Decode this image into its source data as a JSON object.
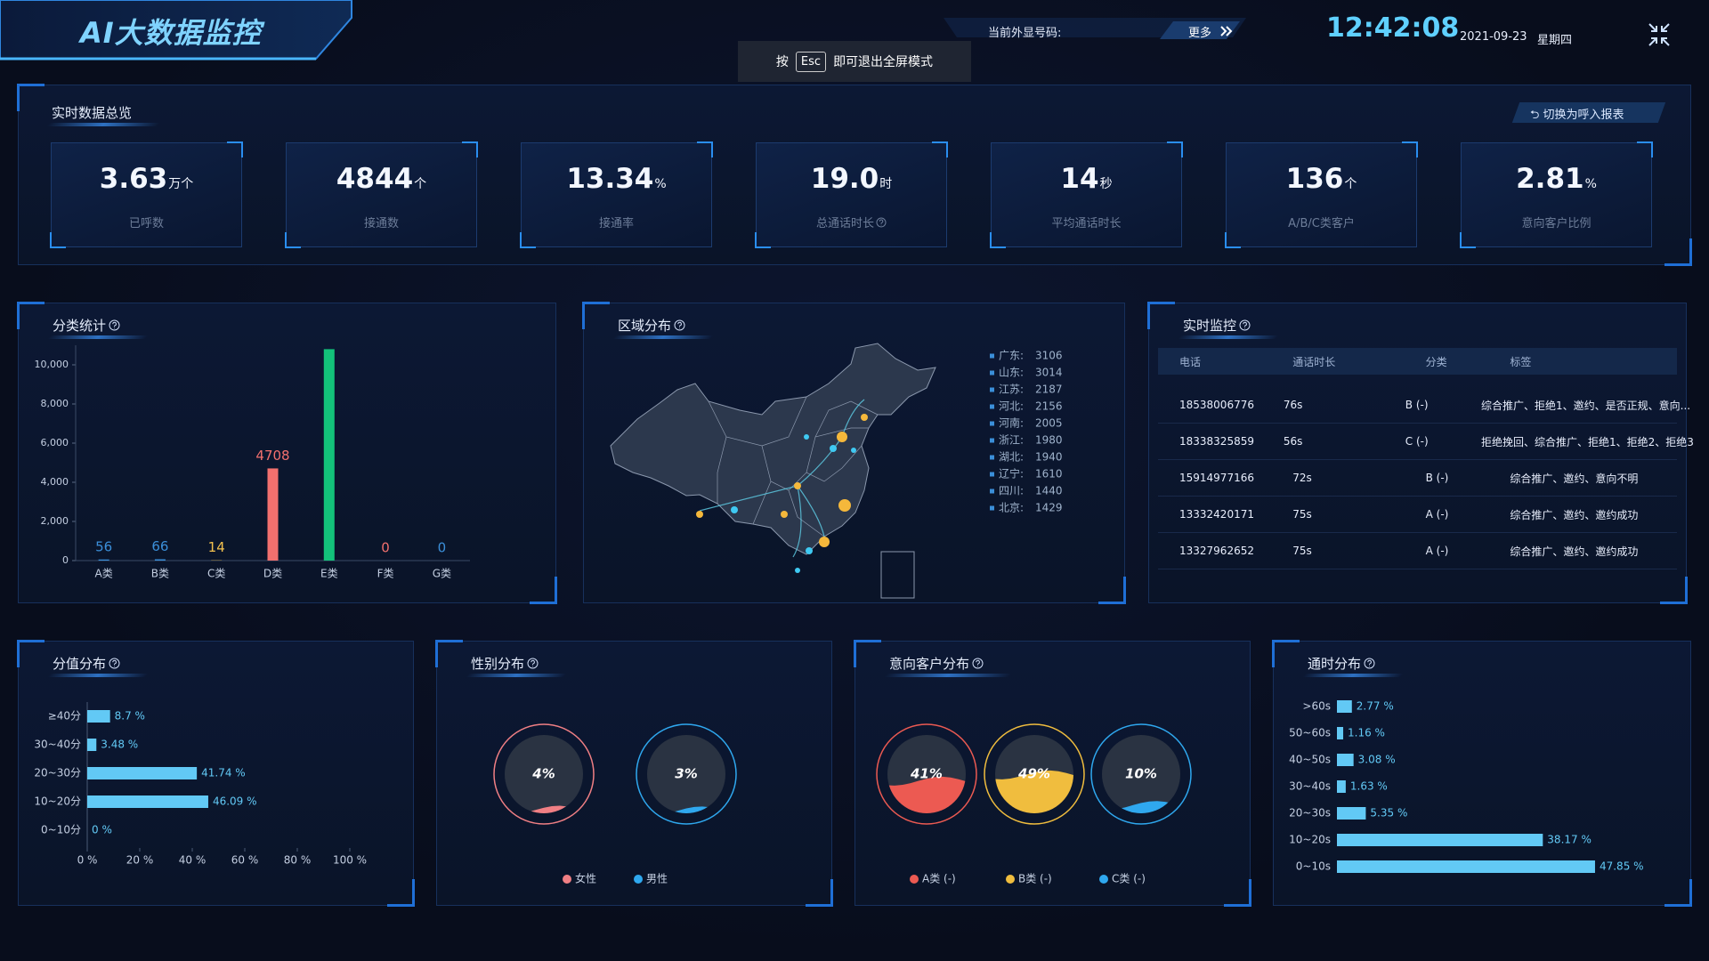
{
  "header": {
    "title": "AI大数据监控",
    "caller_label": "当前外显号码:",
    "more_button": "更多",
    "time": "12:42:08",
    "date": "2021-09-23",
    "weekday": "星期四"
  },
  "fullscreen_hint": {
    "before": "按",
    "key": "Esc",
    "after": "即可退出全屏模式"
  },
  "overview": {
    "title": "实时数据总览",
    "switch_button": "切换为呼入报表",
    "kpis": [
      {
        "value": "3.63",
        "unit": "万个",
        "label": "已呼数"
      },
      {
        "value": "4844",
        "unit": "个",
        "label": "接通数"
      },
      {
        "value": "13.34",
        "unit": "%",
        "label": "接通率"
      },
      {
        "value": "19.0",
        "unit": "时",
        "label": "总通话时长"
      },
      {
        "value": "14",
        "unit": "秒",
        "label": "平均通话时长"
      },
      {
        "value": "136",
        "unit": "个",
        "label": "A/B/C类客户"
      },
      {
        "value": "2.81",
        "unit": "%",
        "label": "意向客户比例"
      }
    ]
  },
  "chart_data": [
    {
      "type": "bar",
      "title": "分类统计",
      "categories": [
        "A类",
        "B类",
        "C类",
        "D类",
        "E类",
        "F类",
        "G类"
      ],
      "values": [
        56,
        66,
        14,
        4708,
        10800,
        0,
        0
      ],
      "value_labels": [
        "56",
        "66",
        "14",
        "4708",
        null,
        "0",
        "0"
      ],
      "colors": [
        "#3b8fd9",
        "#3b8fd9",
        "#f2c14e",
        "#f2706e",
        "#13c27a",
        "#f2706e",
        "#3b8fd9"
      ],
      "ylim": [
        0,
        11000
      ],
      "yticks": [
        0,
        {
          "value": 2000,
          "label": "2,000"
        },
        {
          "value": 4000,
          "label": "4,000"
        },
        {
          "value": 6000,
          "label": "6,000"
        },
        {
          "value": 8000,
          "label": "8,000"
        },
        {
          "value": 10000,
          "label": "10,000"
        }
      ]
    },
    {
      "type": "hbar",
      "title": "分值分布",
      "categories": [
        "≥40分",
        "30~40分",
        "20~30分",
        "10~20分",
        "0~10分"
      ],
      "values": [
        8.7,
        3.48,
        41.74,
        46.09,
        0
      ],
      "value_labels": [
        "8.7 %",
        "3.48 %",
        "41.74 %",
        "46.09 %",
        "0 %"
      ],
      "color": "#62c9f5",
      "xlim": [
        0,
        100
      ],
      "xticks": [
        {
          "value": 0,
          "label": "0 %"
        },
        {
          "value": 20,
          "label": "20 %"
        },
        {
          "value": 40,
          "label": "40 %"
        },
        {
          "value": 60,
          "label": "60 %"
        },
        {
          "value": 80,
          "label": "80 %"
        },
        {
          "value": 100,
          "label": "100 %"
        }
      ]
    },
    {
      "type": "gauge",
      "title": "性别分布",
      "categories": [
        "女性",
        "男性"
      ],
      "values": [
        4,
        3
      ],
      "value_labels": [
        "4%",
        "3%"
      ],
      "colors": [
        "#f07f84",
        "#2fa8ef"
      ]
    },
    {
      "type": "gauge",
      "title": "意向客户分布",
      "categories": [
        "A类 (-)",
        "B类 (-)",
        "C类 (-)"
      ],
      "values": [
        41,
        49,
        10
      ],
      "value_labels": [
        "41%",
        "49%",
        "10%"
      ],
      "colors": [
        "#ec5a52",
        "#f0bd3e",
        "#2fa8ef"
      ]
    },
    {
      "type": "hbar",
      "title": "通时分布",
      "categories": [
        ">60s",
        "50~60s",
        "40~50s",
        "30~40s",
        "20~30s",
        "10~20s",
        "0~10s"
      ],
      "values": [
        2.77,
        1.16,
        3.08,
        1.63,
        5.35,
        38.17,
        47.85
      ],
      "value_labels": [
        "2.77 %",
        "1.16 %",
        "3.08 %",
        "1.63 %",
        "5.35 %",
        "38.17 %",
        "47.85 %"
      ],
      "color": "#62c9f5",
      "xlim": [
        0,
        50
      ]
    }
  ],
  "region": {
    "title": "区域分布",
    "items": [
      {
        "name": "广东:",
        "value": 3106
      },
      {
        "name": "山东:",
        "value": 3014
      },
      {
        "name": "江苏:",
        "value": 2187
      },
      {
        "name": "河北:",
        "value": 2156
      },
      {
        "name": "河南:",
        "value": 2005
      },
      {
        "name": "浙江:",
        "value": 1980
      },
      {
        "name": "湖北:",
        "value": 1940
      },
      {
        "name": "辽宁:",
        "value": 1610
      },
      {
        "name": "四川:",
        "value": 1440
      },
      {
        "name": "北京:",
        "value": 1429
      }
    ]
  },
  "monitor": {
    "title": "实时监控",
    "columns": [
      "电话",
      "通话时长",
      "分类",
      "标签"
    ],
    "rows": [
      [
        "18538006776",
        "76s",
        "B (-)",
        "综合推广、拒绝1、邀约、是否正规、意向..."
      ],
      [
        "18338325859",
        "56s",
        "C (-)",
        "拒绝挽回、综合推广、拒绝1、拒绝2、拒绝3"
      ],
      [
        "15914977166",
        "72s",
        "B (-)",
        "综合推广、邀约、意向不明"
      ],
      [
        "13332420171",
        "75s",
        "A (-)",
        "综合推广、邀约、邀约成功"
      ],
      [
        "13327962652",
        "75s",
        "A (-)",
        "综合推广、邀约、邀约成功"
      ]
    ]
  }
}
